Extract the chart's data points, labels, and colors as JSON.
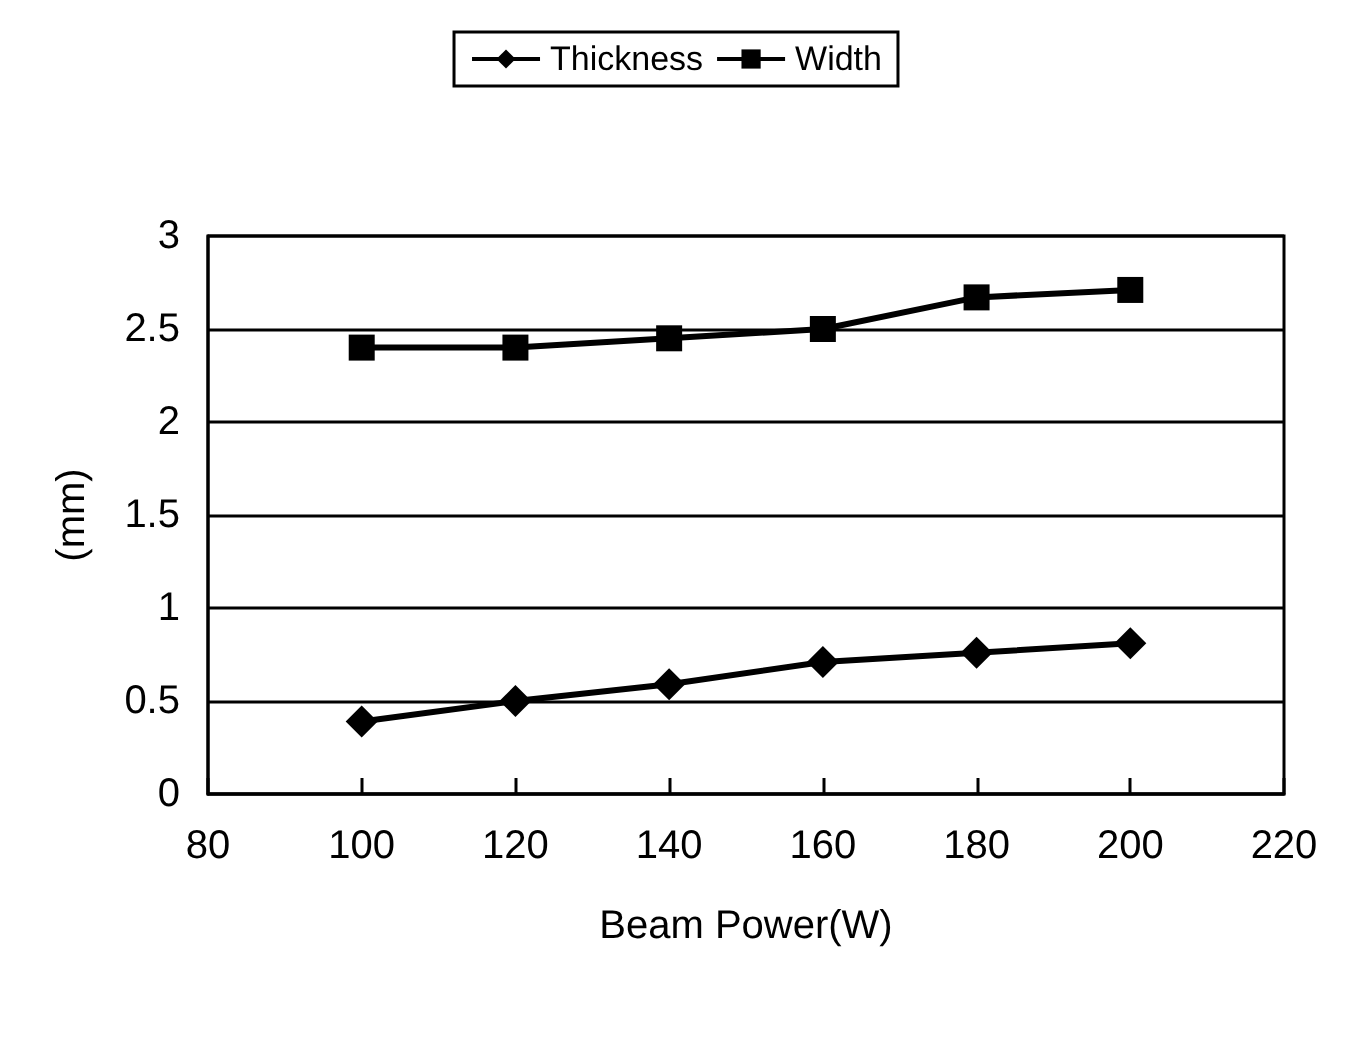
{
  "chart_data": {
    "type": "line",
    "xlabel": "Beam Power(W)",
    "ylabel": "(mm)",
    "x": [
      100,
      120,
      140,
      160,
      180,
      200
    ],
    "series": [
      {
        "name": "Thickness",
        "color": "#000000",
        "marker": "diamond",
        "values": [
          0.39,
          0.5,
          0.59,
          0.71,
          0.76,
          0.81
        ]
      },
      {
        "name": "Width",
        "color": "#000000",
        "marker": "square",
        "values": [
          2.4,
          2.4,
          2.45,
          2.5,
          2.67,
          2.71
        ]
      }
    ],
    "xlim": [
      80,
      220
    ],
    "xticks": [
      80,
      100,
      120,
      140,
      160,
      180,
      200,
      220
    ],
    "ylim": [
      0,
      3
    ],
    "yticks": [
      0,
      0.5,
      1,
      1.5,
      2,
      2.5,
      3
    ],
    "grid": "y",
    "legend": "top",
    "line_style": "solid"
  }
}
